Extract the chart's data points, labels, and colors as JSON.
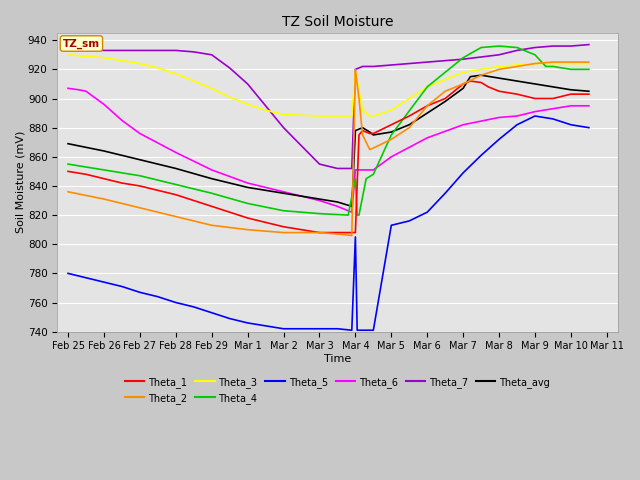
{
  "title": "TZ Soil Moisture",
  "xlabel": "Time",
  "ylabel": "Soil Moisture (mV)",
  "ylim": [
    740,
    945
  ],
  "xlim": [
    -0.3,
    15.3
  ],
  "legend_label": "TZ_sm",
  "series": {
    "Theta_1": {
      "color": "#ff0000",
      "points": [
        [
          0,
          850
        ],
        [
          0.5,
          848
        ],
        [
          1,
          845
        ],
        [
          1.5,
          842
        ],
        [
          2,
          840
        ],
        [
          2.5,
          837
        ],
        [
          3,
          834
        ],
        [
          3.5,
          830
        ],
        [
          4,
          826
        ],
        [
          4.5,
          822
        ],
        [
          5,
          818
        ],
        [
          5.5,
          815
        ],
        [
          6,
          812
        ],
        [
          6.5,
          810
        ],
        [
          7,
          808
        ],
        [
          7.5,
          808
        ],
        [
          8,
          808
        ],
        [
          8.1,
          875
        ],
        [
          8.2,
          878
        ],
        [
          8.4,
          876
        ],
        [
          8.5,
          876
        ],
        [
          9,
          882
        ],
        [
          9.5,
          888
        ],
        [
          10,
          895
        ],
        [
          10.5,
          900
        ],
        [
          11,
          910
        ],
        [
          11.2,
          912
        ],
        [
          11.5,
          911
        ],
        [
          11.7,
          908
        ],
        [
          12,
          905
        ],
        [
          12.5,
          903
        ],
        [
          13,
          900
        ],
        [
          13.5,
          900
        ],
        [
          14,
          903
        ],
        [
          14.5,
          903
        ]
      ]
    },
    "Theta_2": {
      "color": "#ff8c00",
      "points": [
        [
          0,
          836
        ],
        [
          1,
          831
        ],
        [
          2,
          825
        ],
        [
          3,
          819
        ],
        [
          4,
          813
        ],
        [
          5,
          810
        ],
        [
          6,
          808
        ],
        [
          7,
          808
        ],
        [
          7.5,
          807
        ],
        [
          7.9,
          806
        ],
        [
          8,
          920
        ],
        [
          8.1,
          900
        ],
        [
          8.2,
          875
        ],
        [
          8.4,
          865
        ],
        [
          8.5,
          866
        ],
        [
          9,
          872
        ],
        [
          9.5,
          880
        ],
        [
          10,
          895
        ],
        [
          10.5,
          905
        ],
        [
          11,
          910
        ],
        [
          11.5,
          916
        ],
        [
          12,
          920
        ],
        [
          12.5,
          922
        ],
        [
          13,
          924
        ],
        [
          13.5,
          925
        ],
        [
          14,
          925
        ],
        [
          14.5,
          925
        ]
      ]
    },
    "Theta_3": {
      "color": "#ffff00",
      "points": [
        [
          0,
          930
        ],
        [
          0.5,
          929
        ],
        [
          1,
          928
        ],
        [
          1.5,
          926
        ],
        [
          2,
          924
        ],
        [
          2.5,
          921
        ],
        [
          3,
          917
        ],
        [
          3.5,
          912
        ],
        [
          4,
          907
        ],
        [
          4.5,
          901
        ],
        [
          5,
          896
        ],
        [
          5.5,
          892
        ],
        [
          6,
          889
        ],
        [
          7,
          888
        ],
        [
          7.5,
          888
        ],
        [
          7.9,
          888
        ],
        [
          8,
          919
        ],
        [
          8.2,
          892
        ],
        [
          8.4,
          888
        ],
        [
          8.5,
          888
        ],
        [
          9,
          892
        ],
        [
          10,
          908
        ],
        [
          11,
          918
        ],
        [
          12,
          922
        ],
        [
          13,
          924
        ],
        [
          13.5,
          924
        ],
        [
          14,
          924
        ],
        [
          14.5,
          924
        ]
      ]
    },
    "Theta_4": {
      "color": "#00cc00",
      "points": [
        [
          0,
          855
        ],
        [
          1,
          851
        ],
        [
          2,
          847
        ],
        [
          3,
          841
        ],
        [
          4,
          835
        ],
        [
          5,
          828
        ],
        [
          6,
          823
        ],
        [
          7,
          821
        ],
        [
          7.8,
          820
        ],
        [
          8,
          845
        ],
        [
          8.05,
          820
        ],
        [
          8.1,
          820
        ],
        [
          8.3,
          845
        ],
        [
          8.5,
          848
        ],
        [
          9,
          875
        ],
        [
          10,
          908
        ],
        [
          11,
          928
        ],
        [
          11.5,
          935
        ],
        [
          12,
          936
        ],
        [
          12.5,
          935
        ],
        [
          13,
          930
        ],
        [
          13.3,
          922
        ],
        [
          13.5,
          922
        ],
        [
          14,
          920
        ],
        [
          14.5,
          920
        ]
      ]
    },
    "Theta_5": {
      "color": "#0000ff",
      "points": [
        [
          0,
          780
        ],
        [
          0.5,
          777
        ],
        [
          1,
          774
        ],
        [
          1.5,
          771
        ],
        [
          2,
          767
        ],
        [
          2.5,
          764
        ],
        [
          3,
          760
        ],
        [
          3.5,
          757
        ],
        [
          4,
          753
        ],
        [
          4.5,
          749
        ],
        [
          5,
          746
        ],
        [
          5.5,
          744
        ],
        [
          6,
          742
        ],
        [
          6.5,
          742
        ],
        [
          7,
          742
        ],
        [
          7.5,
          742
        ],
        [
          7.9,
          741
        ],
        [
          8,
          805
        ],
        [
          8.05,
          741
        ],
        [
          8.1,
          741
        ],
        [
          8.15,
          741
        ],
        [
          8.3,
          741
        ],
        [
          8.5,
          741
        ],
        [
          9,
          813
        ],
        [
          9.5,
          816
        ],
        [
          10,
          822
        ],
        [
          10.5,
          835
        ],
        [
          11,
          849
        ],
        [
          11.5,
          861
        ],
        [
          12,
          872
        ],
        [
          12.5,
          882
        ],
        [
          13,
          888
        ],
        [
          13.5,
          886
        ],
        [
          14,
          882
        ],
        [
          14.5,
          880
        ]
      ]
    },
    "Theta_6": {
      "color": "#ff00ff",
      "points": [
        [
          0,
          907
        ],
        [
          0.3,
          906
        ],
        [
          0.5,
          905
        ],
        [
          1,
          896
        ],
        [
          1.5,
          885
        ],
        [
          2,
          876
        ],
        [
          3,
          863
        ],
        [
          4,
          851
        ],
        [
          5,
          842
        ],
        [
          6,
          836
        ],
        [
          7,
          830
        ],
        [
          7.5,
          826
        ],
        [
          7.9,
          822
        ],
        [
          8,
          851
        ],
        [
          8.2,
          851
        ],
        [
          8.5,
          851
        ],
        [
          9,
          860
        ],
        [
          10,
          873
        ],
        [
          11,
          882
        ],
        [
          12,
          887
        ],
        [
          12.5,
          888
        ],
        [
          13,
          891
        ],
        [
          13.5,
          893
        ],
        [
          14,
          895
        ],
        [
          14.5,
          895
        ]
      ]
    },
    "Theta_7": {
      "color": "#9900cc",
      "points": [
        [
          0,
          934
        ],
        [
          0.5,
          934
        ],
        [
          1,
          933
        ],
        [
          2,
          933
        ],
        [
          3,
          933
        ],
        [
          3.5,
          932
        ],
        [
          4,
          930
        ],
        [
          4.5,
          921
        ],
        [
          5,
          910
        ],
        [
          6,
          880
        ],
        [
          7,
          855
        ],
        [
          7.5,
          852
        ],
        [
          7.9,
          852
        ],
        [
          8,
          920
        ],
        [
          8.2,
          922
        ],
        [
          8.5,
          922
        ],
        [
          9,
          923
        ],
        [
          10,
          925
        ],
        [
          11,
          927
        ],
        [
          12,
          930
        ],
        [
          12.5,
          933
        ],
        [
          13,
          935
        ],
        [
          13.5,
          936
        ],
        [
          14,
          936
        ],
        [
          14.5,
          937
        ]
      ]
    },
    "Theta_avg": {
      "color": "#000000",
      "points": [
        [
          0,
          869
        ],
        [
          1,
          864
        ],
        [
          2,
          858
        ],
        [
          3,
          852
        ],
        [
          4,
          845
        ],
        [
          5,
          839
        ],
        [
          6,
          835
        ],
        [
          7,
          831
        ],
        [
          7.5,
          829
        ],
        [
          7.9,
          826
        ],
        [
          8,
          878
        ],
        [
          8.2,
          880
        ],
        [
          8.4,
          877
        ],
        [
          8.5,
          875
        ],
        [
          9,
          877
        ],
        [
          9.5,
          882
        ],
        [
          10,
          890
        ],
        [
          10.5,
          898
        ],
        [
          11,
          907
        ],
        [
          11.2,
          915
        ],
        [
          11.5,
          916
        ],
        [
          12,
          914
        ],
        [
          12.5,
          912
        ],
        [
          13,
          910
        ],
        [
          13.5,
          908
        ],
        [
          14,
          906
        ],
        [
          14.5,
          905
        ]
      ]
    }
  },
  "tick_labels": [
    "Feb 25",
    "Feb 26",
    "Feb 27",
    "Feb 28",
    "Feb 29",
    "Mar 1",
    "Mar 2",
    "Mar 3",
    "Mar 4",
    "Mar 5",
    "Mar 6",
    "Mar 7",
    "Mar 8",
    "Mar 9",
    "Mar 10",
    "Mar 11"
  ],
  "tick_positions": [
    0,
    1,
    2,
    3,
    4,
    5,
    6,
    7,
    8,
    9,
    10,
    11,
    12,
    13,
    14,
    15
  ],
  "yticks": [
    740,
    760,
    780,
    800,
    820,
    840,
    860,
    880,
    900,
    920,
    940
  ]
}
